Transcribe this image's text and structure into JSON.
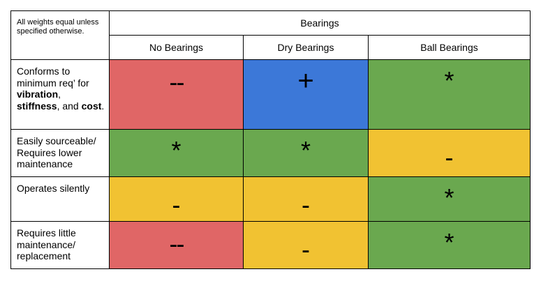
{
  "table": {
    "corner_note": "All weights equal unless specified otherwise.",
    "group_header": "Bearings",
    "columns": [
      "No Bearings",
      "Dry Bearings",
      "Ball Bearings"
    ],
    "rows": [
      {
        "label_parts": [
          {
            "text": "Conforms to minimum req’ for ",
            "bold": false
          },
          {
            "text": "vibration",
            "bold": true
          },
          {
            "text": ", ",
            "bold": false
          },
          {
            "text": "stiffness",
            "bold": true
          },
          {
            "text": ", and ",
            "bold": false
          },
          {
            "text": "cost",
            "bold": true
          },
          {
            "text": ".",
            "bold": false
          }
        ],
        "cells": [
          {
            "symbol": "--",
            "color": "#e06666"
          },
          {
            "symbol": "+",
            "color": "#3c78d8"
          },
          {
            "symbol": "*",
            "color": "#6aa84f"
          }
        ]
      },
      {
        "label_parts": [
          {
            "text": "Easily sourceable/ Requires lower maintenance",
            "bold": false
          }
        ],
        "cells": [
          {
            "symbol": "*",
            "color": "#6aa84f"
          },
          {
            "symbol": "*",
            "color": "#6aa84f"
          },
          {
            "symbol": "-",
            "color": "#f1c232"
          }
        ]
      },
      {
        "label_parts": [
          {
            "text": "Operates silently",
            "bold": false
          }
        ],
        "cells": [
          {
            "symbol": "-",
            "color": "#f1c232"
          },
          {
            "symbol": "-",
            "color": "#f1c232"
          },
          {
            "symbol": "*",
            "color": "#6aa84f"
          }
        ]
      },
      {
        "label_parts": [
          {
            "text": "Requires little maintenance/ replacement",
            "bold": false
          }
        ],
        "cells": [
          {
            "symbol": "--",
            "color": "#e06666"
          },
          {
            "symbol": "-",
            "color": "#f1c232"
          },
          {
            "symbol": "*",
            "color": "#6aa84f"
          }
        ]
      }
    ]
  }
}
